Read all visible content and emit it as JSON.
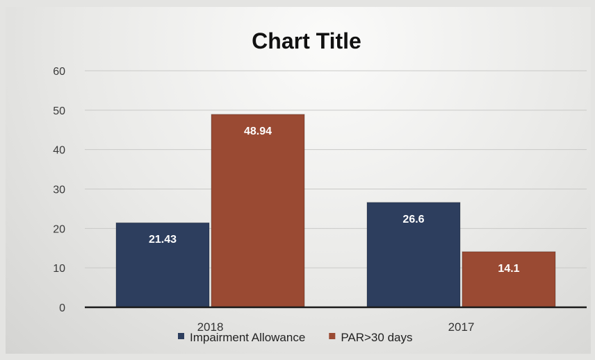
{
  "chart_data": {
    "type": "bar",
    "title": "Chart Title",
    "categories": [
      "2018",
      "2017"
    ],
    "series": [
      {
        "name": "Impairment Allowance",
        "values": [
          21.43,
          26.6
        ],
        "color": "#2d3e5e"
      },
      {
        "name": "PAR>30 days",
        "values": [
          48.94,
          14.1
        ],
        "color": "#9a4a33"
      }
    ],
    "ylim": [
      0,
      60
    ],
    "yticks": [
      0,
      10,
      20,
      30,
      40,
      50,
      60
    ],
    "grid": true,
    "data_labels": true,
    "legend": "bottom"
  }
}
